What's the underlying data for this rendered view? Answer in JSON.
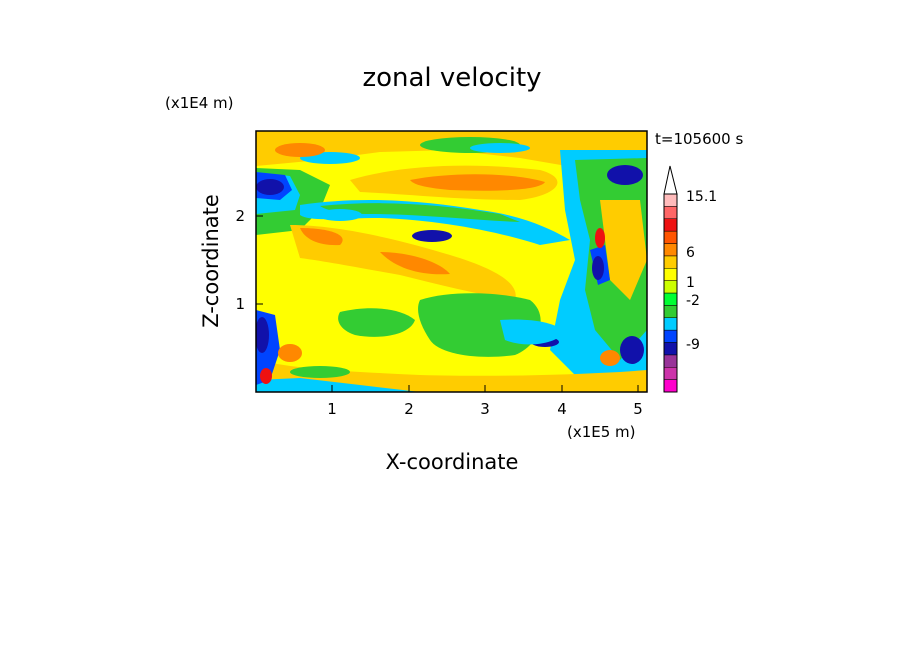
{
  "chart_data": {
    "type": "heatmap",
    "title": "zonal velocity",
    "xlabel": "X-coordinate",
    "ylabel": "Z-coordinate",
    "x_unit": "(x1E5 m)",
    "y_unit": "(x1E4 m)",
    "time_label": "t=105600 s",
    "xlim": [
      0.0,
      5.12
    ],
    "ylim": [
      0.0,
      2.95
    ],
    "x_ticks": [
      "1",
      "2",
      "3",
      "4",
      "5"
    ],
    "y_ticks": [
      "1",
      "2"
    ],
    "colorbar": {
      "labels": [
        "15.1",
        "6",
        "1",
        "-2",
        "-9"
      ],
      "colors": [
        "#ff00cc",
        "#cc33aa",
        "#993399",
        "#1111aa",
        "#0044ff",
        "#00ccff",
        "#33cc33",
        "#00ff33",
        "#ccff00",
        "#ffff00",
        "#ffcc00",
        "#ff8800",
        "#ff5500",
        "#ee1111",
        "#ff6666",
        "#ffbbbb"
      ],
      "extend": "max"
    }
  }
}
